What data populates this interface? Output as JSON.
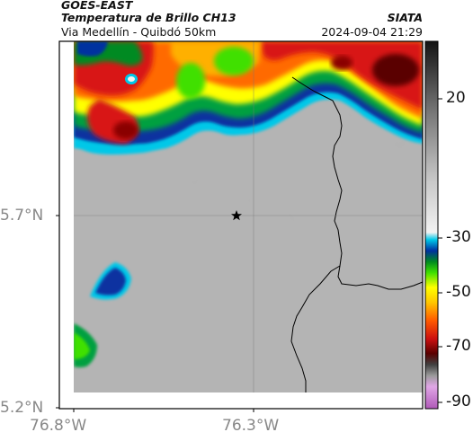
{
  "header": {
    "satellite": "GOES-EAST",
    "product": "Temperatura de Brillo CH13",
    "route": "Via Medellín - Quibdó 50km",
    "org": "SIATA",
    "timestamp": "2024-09-04 21:29"
  },
  "axes": {
    "x_ticks": [
      "76.8°W",
      "76.3°W"
    ],
    "y_ticks": [
      "5.7°N",
      "5.2°N"
    ]
  },
  "colorbar": {
    "ticks": [
      "20",
      "-30",
      "-50",
      "-70",
      "-90"
    ]
  },
  "colors": {
    "cloud_gray": "#b4b4b4",
    "frame": "#000000",
    "tick_label": "#888888"
  },
  "marker": {
    "icon": "star-icon"
  }
}
